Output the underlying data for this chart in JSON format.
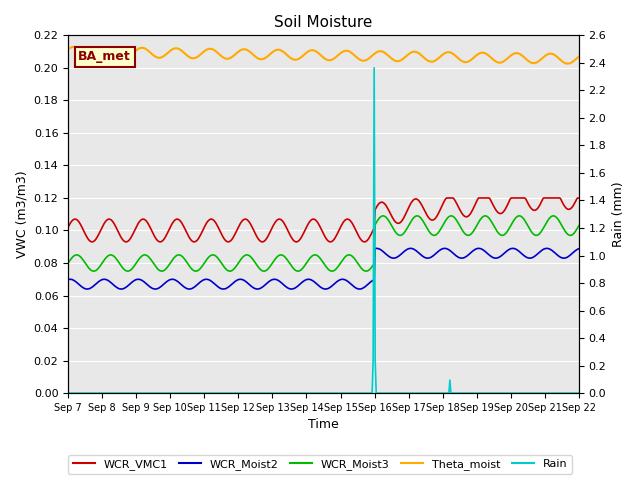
{
  "title": "Soil Moisture",
  "xlabel": "Time",
  "ylabel_left": "VWC (m3/m3)",
  "ylabel_right": "Rain (mm)",
  "ylim_left": [
    0.0,
    0.22
  ],
  "ylim_right": [
    0.0,
    2.6
  ],
  "yticks_left": [
    0.0,
    0.02,
    0.04,
    0.06,
    0.08,
    0.1,
    0.12,
    0.14,
    0.16,
    0.18,
    0.2,
    0.22
  ],
  "yticks_right": [
    0.0,
    0.2,
    0.4,
    0.6,
    0.8,
    1.0,
    1.2,
    1.4,
    1.6,
    1.8,
    2.0,
    2.2,
    2.4,
    2.6
  ],
  "bg_color": "#e8e8e8",
  "legend_label": "BA_met",
  "legend_box_facecolor": "#ffffcc",
  "legend_box_edgecolor": "#8b0000",
  "colors": {
    "WCR_VMC1": "#cc0000",
    "WCR_Moist2": "#0000cc",
    "WCR_Moist3": "#00bb00",
    "Theta_moist": "#ffaa00",
    "Rain": "#00cccc"
  },
  "rain_day": 9.0,
  "rain_day2": 11.2,
  "n_points": 500,
  "n_days": 15
}
